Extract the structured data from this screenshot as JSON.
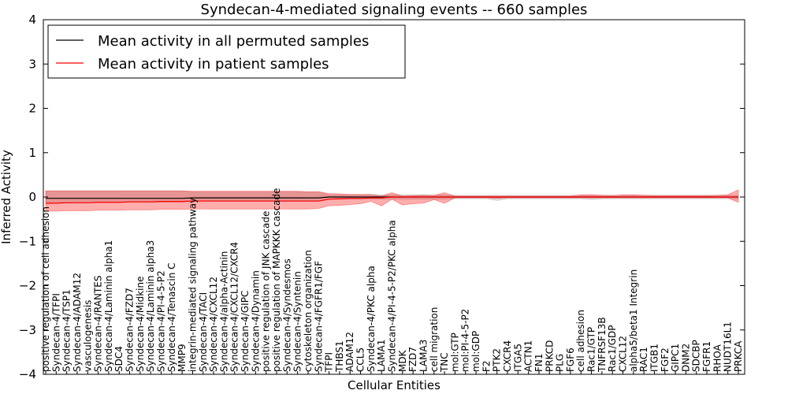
{
  "chart_data": {
    "type": "line",
    "title": "Syndecan-4-mediated signaling events -- 660 samples",
    "xlabel": "Cellular Entities",
    "ylabel": "Inferred Activity",
    "ylim": [
      -4,
      4
    ],
    "yticks": [
      "4",
      "3",
      "2",
      "1",
      "0",
      "−1",
      "−2",
      "−3",
      "−4"
    ],
    "ytick_values": [
      4,
      3,
      2,
      1,
      0,
      -1,
      -2,
      -3,
      -4
    ],
    "legend": {
      "placement": "top-left",
      "entries": [
        {
          "label": "Mean activity in all permuted samples",
          "color": "#000000"
        },
        {
          "label": "Mean activity in patient samples",
          "color": "#ff0000"
        }
      ]
    },
    "categories": [
      "positive regulation of cell adhesion",
      "Syndecan-4/TFPI",
      "Syndecan-4/TSP1",
      "Syndecan-4/ADAM12",
      "vasculogenesis",
      "Syndecan-4/RANTES",
      "Syndecan-4/Laminin alpha1",
      "SDC4",
      "Syndecan-4/FZD7",
      "Syndecan-4/Midkine",
      "Syndecan-4/Laminin alpha3",
      "Syndecan-4/PI-4-5-P2",
      "Syndecan-4/Tenascin C",
      "MMP9",
      "integrin-mediated signaling pathway",
      "Syndecan-4/TACI",
      "Syndecan-4/CXCL12",
      "Syndecan-4/alpha-Actinin",
      "Syndecan-4/CXCL12/CXCR4",
      "Syndecan-4/GIPC",
      "Syndecan-4/Dynamin",
      "positive regulation of JNK cascade",
      "positive regulation of MAPKKK cascade",
      "Syndecan-4/Syndesmos",
      "Syndecan-4/Syntenin",
      "cytoskeleton organization",
      "Syndecan-4/FGFR1/FGF",
      "TFPI",
      "THBS1",
      "ADAM12",
      "CCL5",
      "Syndecan-4/PKC alpha",
      "LAMA1",
      "Syndecan-4/PI-4-5-P2/PKC alpha",
      "MDK",
      "FZD7",
      "LAMA3",
      "cell migration",
      "TNC",
      "mol:GTP",
      "mol:PI-4-5-P2",
      "mol:GDP",
      "F2",
      "PTK2",
      "CXCR4",
      "ITGA5",
      "ACTN1",
      "FN1",
      "PRKCD",
      "PLG",
      "FGF6",
      "cell adhesion",
      "Rac1/GTP",
      "TNFRSF13B",
      "Rac1/GDP",
      "CXCL12",
      "alpha5/beta1 Integrin",
      "RAC1",
      "ITGB1",
      "FGF2",
      "GIPC1",
      "DNM2",
      "SDCBP",
      "FGFR1",
      "RHOA",
      "NUDT16L1",
      "PRKCA"
    ],
    "series": [
      {
        "name": "Mean activity in all permuted samples",
        "color": "#000000",
        "values": [
          -0.03,
          -0.03,
          -0.03,
          -0.03,
          -0.03,
          -0.03,
          -0.03,
          -0.03,
          -0.03,
          -0.03,
          -0.03,
          -0.03,
          -0.03,
          -0.03,
          -0.02,
          -0.02,
          -0.02,
          -0.02,
          -0.02,
          -0.02,
          -0.02,
          -0.02,
          -0.02,
          -0.02,
          -0.02,
          -0.02,
          -0.02,
          0.0,
          0.0,
          0.0,
          0.0,
          0.0,
          0.0,
          0.0,
          0.0,
          0.0,
          0.0,
          0.0,
          0.0,
          0.0,
          0.0,
          0.0,
          0.0,
          0.0,
          0.0,
          0.0,
          0.0,
          0.0,
          0.0,
          0.0,
          0.0,
          0.0,
          0.0,
          0.0,
          0.0,
          0.0,
          0.0,
          0.0,
          0.0,
          0.0,
          0.0,
          0.0,
          0.0,
          0.0,
          0.0,
          0.0,
          0.0
        ],
        "lower": [
          -0.12,
          -0.12,
          -0.12,
          -0.12,
          -0.12,
          -0.12,
          -0.12,
          -0.12,
          -0.12,
          -0.12,
          -0.12,
          -0.12,
          -0.12,
          -0.12,
          -0.1,
          -0.1,
          -0.1,
          -0.1,
          -0.1,
          -0.1,
          -0.1,
          -0.1,
          -0.1,
          -0.1,
          -0.1,
          -0.1,
          -0.1,
          -0.05,
          -0.05,
          -0.05,
          -0.05,
          -0.05,
          -0.05,
          -0.05,
          -0.05,
          -0.05,
          -0.05,
          -0.05,
          -0.05,
          -0.04,
          -0.04,
          -0.04,
          -0.04,
          -0.08,
          -0.04,
          -0.04,
          -0.04,
          -0.04,
          -0.04,
          -0.04,
          -0.04,
          -0.04,
          -0.06,
          -0.04,
          -0.04,
          -0.04,
          -0.04,
          -0.04,
          -0.04,
          -0.04,
          -0.04,
          -0.04,
          -0.04,
          -0.04,
          -0.04,
          -0.04,
          -0.04
        ],
        "upper": [
          0.14,
          0.14,
          0.14,
          0.14,
          0.14,
          0.14,
          0.14,
          0.14,
          0.14,
          0.14,
          0.14,
          0.14,
          0.14,
          0.14,
          0.12,
          0.12,
          0.12,
          0.12,
          0.12,
          0.12,
          0.12,
          0.12,
          0.12,
          0.12,
          0.12,
          0.12,
          0.12,
          0.05,
          0.05,
          0.05,
          0.05,
          0.05,
          0.05,
          0.05,
          0.05,
          0.05,
          0.05,
          0.05,
          0.05,
          0.04,
          0.04,
          0.04,
          0.04,
          0.04,
          0.04,
          0.04,
          0.04,
          0.04,
          0.04,
          0.04,
          0.04,
          0.04,
          0.04,
          0.04,
          0.04,
          0.04,
          0.04,
          0.04,
          0.04,
          0.04,
          0.04,
          0.04,
          0.04,
          0.04,
          0.04,
          0.04,
          0.04
        ]
      },
      {
        "name": "Mean activity in patient samples",
        "color": "#ff0000",
        "values": [
          -0.14,
          -0.14,
          -0.13,
          -0.13,
          -0.13,
          -0.12,
          -0.12,
          -0.12,
          -0.11,
          -0.11,
          -0.11,
          -0.1,
          -0.1,
          -0.1,
          -0.09,
          -0.09,
          -0.09,
          -0.09,
          -0.09,
          -0.09,
          -0.09,
          -0.09,
          -0.09,
          -0.09,
          -0.09,
          -0.09,
          -0.09,
          -0.05,
          -0.04,
          -0.03,
          -0.03,
          -0.02,
          -0.02,
          0.0,
          0.0,
          0.0,
          0.0,
          0.0,
          0.0,
          0.0,
          0.0,
          0.0,
          0.0,
          0.0,
          0.0,
          0.0,
          0.0,
          0.0,
          0.0,
          0.0,
          0.0,
          0.0,
          0.0,
          0.0,
          0.0,
          0.0,
          0.0,
          0.0,
          0.0,
          0.0,
          0.0,
          0.0,
          0.0,
          0.0,
          0.0,
          0.0,
          0.0
        ],
        "lower": [
          -0.32,
          -0.32,
          -0.31,
          -0.31,
          -0.31,
          -0.3,
          -0.3,
          -0.3,
          -0.29,
          -0.29,
          -0.29,
          -0.28,
          -0.28,
          -0.28,
          -0.27,
          -0.27,
          -0.27,
          -0.27,
          -0.27,
          -0.27,
          -0.27,
          -0.27,
          -0.27,
          -0.27,
          -0.27,
          -0.27,
          -0.26,
          -0.2,
          -0.19,
          -0.17,
          -0.15,
          -0.1,
          -0.2,
          -0.05,
          -0.18,
          -0.15,
          -0.14,
          -0.06,
          -0.14,
          -0.02,
          -0.02,
          -0.02,
          -0.02,
          -0.03,
          -0.02,
          -0.02,
          -0.02,
          -0.02,
          -0.02,
          -0.02,
          -0.02,
          -0.02,
          -0.02,
          -0.02,
          -0.02,
          -0.02,
          -0.02,
          -0.02,
          -0.02,
          -0.02,
          -0.02,
          -0.02,
          -0.02,
          -0.02,
          -0.02,
          -0.02,
          -0.12
        ],
        "upper": [
          0.14,
          0.14,
          0.14,
          0.14,
          0.14,
          0.14,
          0.14,
          0.14,
          0.14,
          0.14,
          0.14,
          0.14,
          0.14,
          0.14,
          0.13,
          0.13,
          0.13,
          0.13,
          0.13,
          0.13,
          0.13,
          0.13,
          0.13,
          0.13,
          0.13,
          0.12,
          0.12,
          0.08,
          0.07,
          0.06,
          0.06,
          0.06,
          0.02,
          0.1,
          0.02,
          0.03,
          0.04,
          0.03,
          0.1,
          0.02,
          0.02,
          0.02,
          0.02,
          0.02,
          0.02,
          0.02,
          0.02,
          0.02,
          0.02,
          0.02,
          0.02,
          0.05,
          0.05,
          0.04,
          0.03,
          0.05,
          0.05,
          0.04,
          0.03,
          0.03,
          0.03,
          0.03,
          0.03,
          0.03,
          0.04,
          0.05,
          0.16
        ]
      }
    ]
  }
}
